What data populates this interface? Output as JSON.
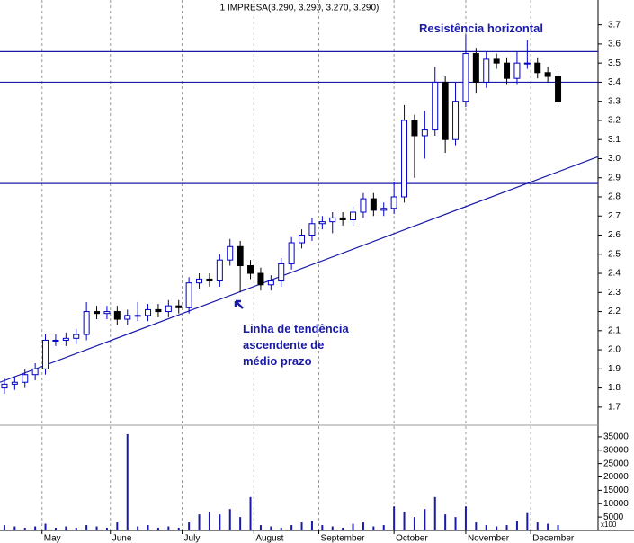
{
  "chart_data": {
    "type": "candlestick",
    "title": "1 IMPRESA(3.290, 3.290, 3.270, 3.290)",
    "color": "#0000c8",
    "down_color": "#000000",
    "line_color": "#1a1aa8",
    "x": [
      0,
      3,
      6,
      9,
      12,
      15,
      18,
      21,
      24,
      27,
      30,
      33,
      36,
      39,
      42,
      45,
      48,
      51,
      54,
      57,
      60,
      63,
      66,
      69,
      72,
      75,
      78,
      81,
      84,
      87,
      90,
      93,
      96,
      99,
      102,
      105,
      108,
      111,
      114,
      117,
      120,
      123,
      126,
      129,
      132,
      135,
      138,
      141,
      144,
      147,
      150,
      153,
      156,
      159,
      162
    ],
    "open": [
      1.8,
      1.82,
      1.83,
      1.87,
      1.9,
      2.05,
      2.05,
      2.06,
      2.08,
      2.2,
      2.19,
      2.2,
      2.16,
      2.18,
      2.18,
      2.21,
      2.2,
      2.23,
      2.22,
      2.35,
      2.37,
      2.36,
      2.47,
      2.54,
      2.44,
      2.4,
      2.34,
      2.36,
      2.45,
      2.56,
      2.6,
      2.66,
      2.67,
      2.69,
      2.68,
      2.72,
      2.79,
      2.73,
      2.74,
      2.8,
      3.2,
      3.12,
      3.15,
      3.4,
      3.1,
      3.3,
      3.55,
      3.4,
      3.52,
      3.5,
      3.42,
      3.5,
      3.5,
      3.45,
      3.43
    ],
    "high": [
      1.85,
      1.86,
      1.9,
      1.93,
      2.08,
      2.08,
      2.09,
      2.11,
      2.25,
      2.23,
      2.23,
      2.23,
      2.21,
      2.25,
      2.24,
      2.24,
      2.26,
      2.26,
      2.38,
      2.4,
      2.4,
      2.5,
      2.58,
      2.57,
      2.47,
      2.43,
      2.39,
      2.48,
      2.59,
      2.63,
      2.69,
      2.7,
      2.72,
      2.72,
      2.75,
      2.82,
      2.82,
      2.77,
      2.88,
      3.28,
      3.23,
      3.25,
      3.48,
      3.43,
      3.4,
      3.65,
      3.58,
      3.56,
      3.55,
      3.53,
      3.56,
      3.62,
      3.53,
      3.48,
      3.46
    ],
    "low": [
      1.77,
      1.79,
      1.8,
      1.84,
      1.87,
      2.02,
      2.02,
      2.03,
      2.05,
      2.16,
      2.16,
      2.13,
      2.13,
      2.15,
      2.15,
      2.17,
      2.17,
      2.19,
      2.19,
      2.32,
      2.33,
      2.33,
      2.44,
      2.3,
      2.37,
      2.31,
      2.31,
      2.33,
      2.42,
      2.53,
      2.57,
      2.63,
      2.61,
      2.65,
      2.65,
      2.69,
      2.7,
      2.7,
      2.71,
      2.77,
      2.9,
      3.0,
      3.12,
      3.03,
      3.07,
      3.27,
      3.34,
      3.37,
      3.47,
      3.39,
      3.39,
      3.47,
      3.42,
      3.4,
      3.27
    ],
    "close": [
      1.82,
      1.83,
      1.87,
      1.9,
      2.05,
      2.05,
      2.06,
      2.08,
      2.2,
      2.19,
      2.2,
      2.16,
      2.18,
      2.18,
      2.21,
      2.2,
      2.23,
      2.22,
      2.35,
      2.37,
      2.36,
      2.47,
      2.54,
      2.44,
      2.4,
      2.34,
      2.36,
      2.45,
      2.56,
      2.6,
      2.66,
      2.67,
      2.69,
      2.68,
      2.72,
      2.79,
      2.73,
      2.74,
      2.8,
      3.2,
      3.12,
      3.15,
      3.4,
      3.1,
      3.3,
      3.55,
      3.4,
      3.52,
      3.5,
      3.42,
      3.5,
      3.5,
      3.45,
      3.43,
      3.3
    ],
    "xlim": [
      -1.3,
      173.7
    ],
    "xticks": [
      {
        "value": 11,
        "label": "May"
      },
      {
        "value": 31,
        "label": "June"
      },
      {
        "value": 52,
        "label": "July"
      },
      {
        "value": 73,
        "label": "August"
      },
      {
        "value": 92,
        "label": "September"
      },
      {
        "value": 114,
        "label": "October"
      },
      {
        "value": 135,
        "label": "November"
      },
      {
        "value": 154,
        "label": "December"
      }
    ],
    "ylim": [
      1.61,
      3.83
    ],
    "yticks": [
      1.7,
      1.8,
      1.9,
      {
        "value": 2.0,
        "label": "2.0"
      },
      2.1,
      2.2,
      2.3,
      2.4,
      2.5,
      2.6,
      2.7,
      2.8,
      2.9,
      {
        "value": 3.0,
        "label": "3.0"
      },
      3.1,
      3.2,
      3.3,
      3.4,
      3.5,
      3.6,
      3.7
    ],
    "resistance_lines": [
      3.56,
      3.4,
      2.87
    ],
    "trendline": {
      "x": [
        -1.3,
        173.7
      ],
      "y": [
        1.83,
        3.01
      ]
    },
    "annotations": [
      "Resistência horizontal",
      "Linha de tendência",
      "ascendente de",
      "médio prazo"
    ],
    "volume": {
      "values": [
        2000,
        1500,
        1000,
        1500,
        2500,
        1000,
        1500,
        1000,
        2000,
        1500,
        1000,
        3000,
        36000,
        1500,
        2000,
        1000,
        1500,
        1000,
        3000,
        6000,
        7000,
        6000,
        8000,
        5000,
        12500,
        2000,
        1500,
        1000,
        2000,
        3000,
        3500,
        2000,
        1500,
        1000,
        2500,
        3000,
        1500,
        2000,
        9000,
        7000,
        5000,
        8000,
        12500,
        6000,
        5000,
        9000,
        3000,
        2000,
        1500,
        2000,
        3500,
        6500,
        3000,
        2500,
        2000
      ],
      "ylim": [
        0,
        39000
      ],
      "yticks": [
        5000,
        10000,
        15000,
        20000,
        25000,
        30000,
        35000
      ],
      "unit": "x100"
    }
  }
}
